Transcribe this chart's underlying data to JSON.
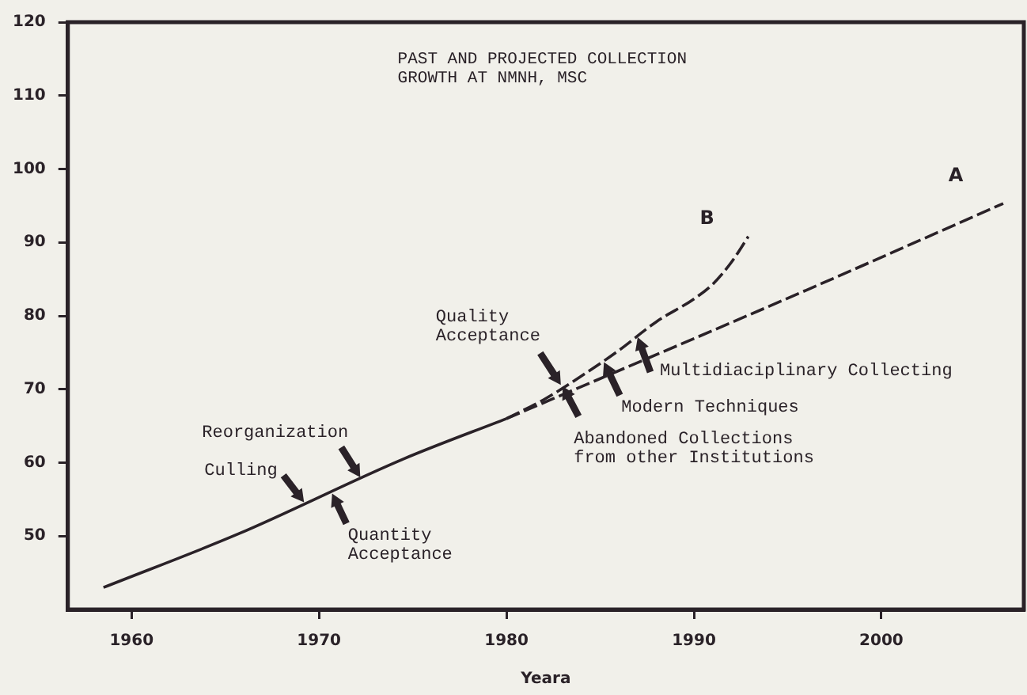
{
  "chart_data": {
    "type": "line",
    "title": "PAST AND PROJECTED COLLECTION\nGROWTH AT NMNH, MSC",
    "xlabel": "Yeara",
    "xlim": [
      1956.6,
      2007.6
    ],
    "xticks": [
      1960,
      1970,
      1980,
      1990,
      2000
    ],
    "ylim": [
      40,
      120
    ],
    "yticks": [
      50,
      60,
      70,
      80,
      90,
      100,
      110,
      120
    ],
    "grid": false,
    "legend": false,
    "marker": "none",
    "series": [
      {
        "color": "#2a2228",
        "line_style": "solid",
        "x": [
          1958.5,
          1965.7,
          1974.5,
          1980
        ],
        "values": [
          43,
          50.3,
          60.5,
          66
        ]
      },
      {
        "name": "A",
        "color": "#2a2228",
        "line_style": "dashed",
        "x": [
          1980,
          1996,
          2006.5
        ],
        "values": [
          66,
          83.5,
          95.3
        ]
      },
      {
        "name": "B",
        "color": "#2a2228",
        "line_style": "dashed",
        "x": [
          1980,
          1982,
          1984,
          1986,
          1988,
          1990,
          1991,
          1992,
          1992.9
        ],
        "values": [
          66,
          68.6,
          71.8,
          75.3,
          79.2,
          82.3,
          84.3,
          87.3,
          90.8
        ]
      }
    ],
    "annotations": [
      {
        "text": "Culling",
        "x": 1969.2,
        "y": 54.6
      },
      {
        "text": "Reorganization",
        "x": 1972.2,
        "y": 58
      },
      {
        "text": "Quantity\nAcceptance",
        "x": 1970.7,
        "y": 55.8
      },
      {
        "text": "Quality\nAcceptance",
        "x": 1982.9,
        "y": 70.6
      },
      {
        "text": "Abandoned Collections\nfrom other Institutions",
        "x": 1983,
        "y": 70.4
      },
      {
        "text": "Modern Techniques",
        "x": 1985.2,
        "y": 73.7
      },
      {
        "text": "Multidiaciplinary Collecting",
        "x": 1987,
        "y": 77.1
      }
    ]
  }
}
